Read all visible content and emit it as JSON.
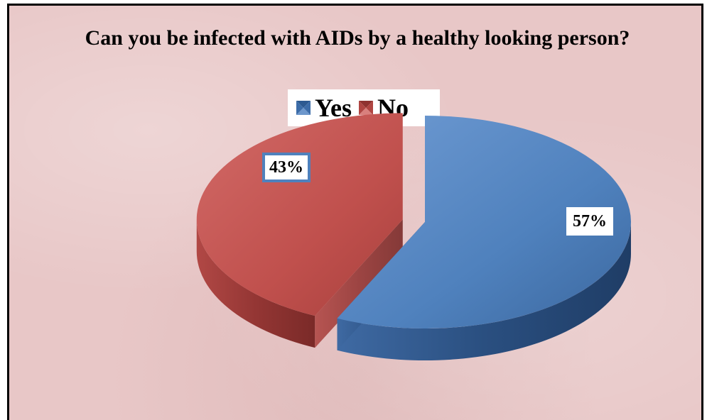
{
  "chart_data": {
    "type": "pie",
    "title": "Can you be infected with AIDs by a healthy looking person?",
    "categories": [
      "Yes",
      "No"
    ],
    "values": [
      57,
      43
    ],
    "data_labels": [
      "57%",
      "43%"
    ],
    "colors": [
      "#4f81bd",
      "#c0504d"
    ],
    "legend_placement": "top",
    "three_d": true,
    "exploded_slice": "No"
  }
}
